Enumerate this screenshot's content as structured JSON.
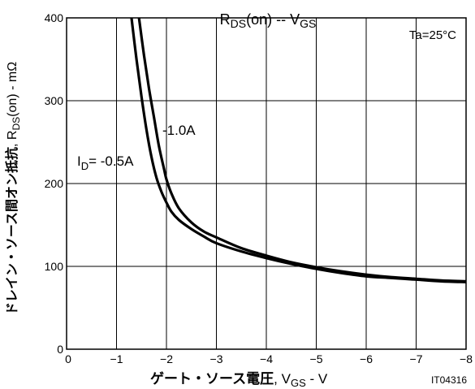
{
  "chart_data": {
    "type": "line",
    "title": {
      "main": "R",
      "main_sub": "DS",
      "main_suffix": "(on)",
      "sep": " -- ",
      "x": "V",
      "x_sub": "GS"
    },
    "annotation": "Ta=25°C",
    "figure_id": "IT04316",
    "xlabel": {
      "jp": "ゲート・ソース電圧",
      "sep": ", ",
      "sym": "V",
      "sym_sub": "GS",
      "unit": " - V"
    },
    "ylabel": {
      "jp": "ドレイン・ソース間オン抵抗",
      "sep": ", ",
      "sym": "R",
      "sym_sub": "DS",
      "sym_suffix": "(on)",
      "unit": " - mΩ"
    },
    "xlim": [
      0,
      -8
    ],
    "ylim": [
      0,
      400
    ],
    "xticks": [
      "0",
      "−1",
      "−2",
      "−3",
      "−4",
      "−5",
      "−6",
      "−7",
      "−8"
    ],
    "yticks": [
      "0",
      "100",
      "200",
      "300",
      "400"
    ],
    "grid": true,
    "series": [
      {
        "name": "-1.0A",
        "label_style": "plain",
        "x": [
          -1.45,
          -1.55,
          -1.65,
          -1.75,
          -1.85,
          -1.95,
          -2.0,
          -2.1,
          -2.25,
          -2.5,
          -2.75,
          -3.0,
          -3.5,
          -4.0,
          -4.5,
          -5.0,
          -5.5,
          -6.0,
          -6.5,
          -7.0,
          -7.5,
          -8.0
        ],
        "y": [
          400,
          355,
          315,
          280,
          245,
          218,
          205,
          188,
          170,
          153,
          142,
          135,
          122,
          113,
          105,
          99,
          94,
          90,
          87,
          85,
          83,
          82
        ]
      },
      {
        "name": "I_D= -0.5A",
        "label_prefix": "I",
        "label_sub": "D",
        "label_suffix": "= -0.5A",
        "x": [
          -1.3,
          -1.4,
          -1.5,
          -1.6,
          -1.7,
          -1.8,
          -1.9,
          -2.0,
          -2.1,
          -2.25,
          -2.5,
          -2.75,
          -3.0,
          -3.5,
          -4.0,
          -4.5,
          -5.0,
          -5.5,
          -6.0,
          -6.5,
          -7.0,
          -7.5,
          -8.0
        ],
        "y": [
          400,
          350,
          305,
          265,
          232,
          207,
          190,
          177,
          166,
          156,
          145,
          136,
          128,
          118,
          110,
          103,
          97,
          92,
          88,
          86,
          84,
          82,
          81
        ]
      }
    ]
  }
}
